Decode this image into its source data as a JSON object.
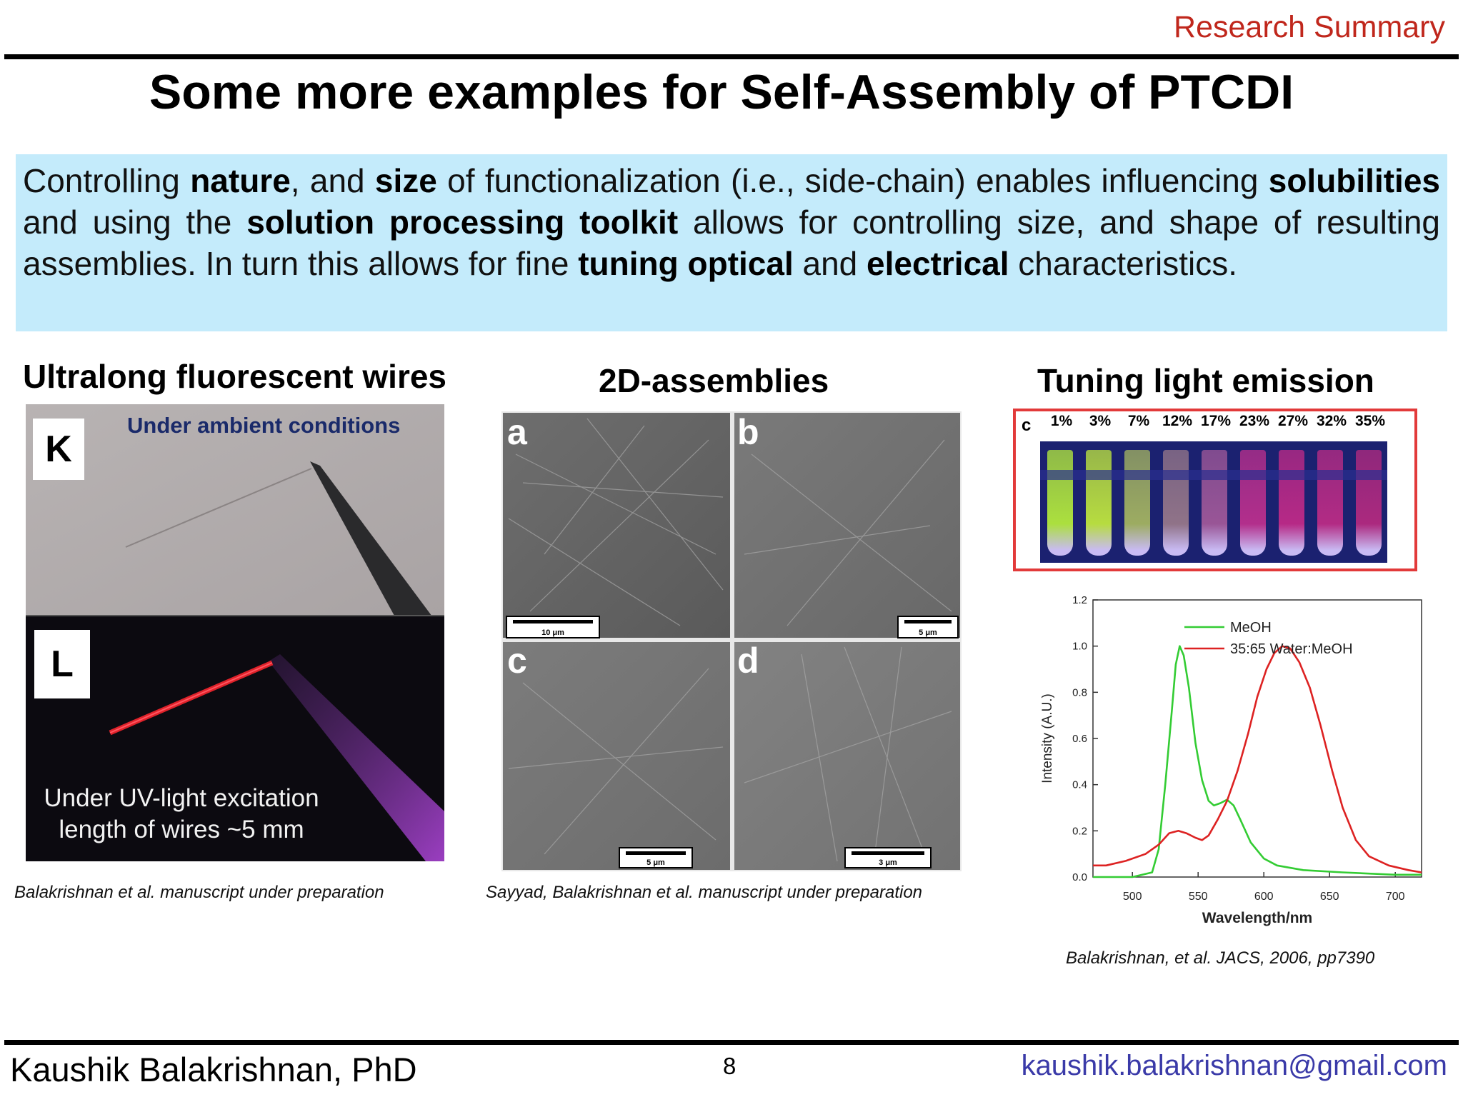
{
  "header": {
    "label": "Research Summary"
  },
  "title": "Some more examples for Self-Assembly of PTCDI",
  "summary": {
    "t1": "Controlling ",
    "b1": "nature",
    "t2": ", and ",
    "b2": "size",
    "t3": " of functionalization (i.e., side-chain) enables influencing ",
    "b3": "solubilities",
    "t4": " and using the ",
    "b4": "solution processing toolkit",
    "t5": " allows for controlling size, and shape of resulting assemblies. In turn this allows for fine ",
    "b5": "tuning optical",
    "t6": " and ",
    "b6": "electrical",
    "t7": " characteristics."
  },
  "panels": {
    "wires": {
      "heading": "Ultralong fluorescent wires",
      "label_k": "K",
      "label_l": "L",
      "ambient_caption": "Under ambient conditions",
      "uv_caption_line1": "Under UV-light excitation",
      "uv_caption_line2": "length of wires ~5 mm",
      "citation": "Balakrishnan et al. manuscript under preparation"
    },
    "assemblies": {
      "heading": "2D-assemblies",
      "letters": [
        "a",
        "b",
        "c",
        "d"
      ],
      "scalebars": [
        "10 μm",
        "5 μm",
        "5 μm",
        "3 μm"
      ],
      "citation": "Sayyad, Balakrishnan et al. manuscript under preparation"
    },
    "emission": {
      "heading": "Tuning light emission",
      "vial_panel_label": "c",
      "vial_percentages": [
        "1%",
        "3%",
        "7%",
        "12%",
        "17%",
        "23%",
        "27%",
        "32%",
        "35%"
      ],
      "vial_colors": [
        "#b8f03a",
        "#c4ec3c",
        "#a8b860",
        "#9a7a8a",
        "#a45a9a",
        "#c0308e",
        "#c42a88",
        "#c02c86",
        "#b82a80"
      ],
      "citation": "Balakrishnan, et al. JACS, 2006, pp7390"
    }
  },
  "chart_data": {
    "type": "line",
    "xlabel": "Wavelength/nm",
    "ylabel": "Intensity (A.U.)",
    "xlim": [
      470,
      720
    ],
    "ylim": [
      0,
      1.2
    ],
    "xticks": [
      500,
      550,
      600,
      650,
      700
    ],
    "yticks": [
      "0.0",
      "0.2",
      "0.4",
      "0.6",
      "0.8",
      "1.0",
      "1.2"
    ],
    "legend_position": "top-right",
    "series": [
      {
        "name": "MeOH",
        "color": "#33cc33",
        "points": [
          [
            470,
            0.0
          ],
          [
            500,
            0.0
          ],
          [
            515,
            0.02
          ],
          [
            520,
            0.12
          ],
          [
            525,
            0.4
          ],
          [
            530,
            0.72
          ],
          [
            533,
            0.92
          ],
          [
            536,
            1.0
          ],
          [
            539,
            0.96
          ],
          [
            543,
            0.82
          ],
          [
            548,
            0.58
          ],
          [
            553,
            0.42
          ],
          [
            558,
            0.33
          ],
          [
            562,
            0.31
          ],
          [
            567,
            0.32
          ],
          [
            572,
            0.335
          ],
          [
            577,
            0.31
          ],
          [
            582,
            0.25
          ],
          [
            590,
            0.15
          ],
          [
            600,
            0.08
          ],
          [
            610,
            0.05
          ],
          [
            630,
            0.03
          ],
          [
            660,
            0.02
          ],
          [
            700,
            0.01
          ],
          [
            720,
            0.01
          ]
        ]
      },
      {
        "name": "35:65 Water:MeOH",
        "color": "#dd2222",
        "points": [
          [
            470,
            0.05
          ],
          [
            480,
            0.05
          ],
          [
            495,
            0.07
          ],
          [
            510,
            0.1
          ],
          [
            520,
            0.14
          ],
          [
            528,
            0.19
          ],
          [
            535,
            0.2
          ],
          [
            541,
            0.19
          ],
          [
            548,
            0.17
          ],
          [
            553,
            0.16
          ],
          [
            558,
            0.18
          ],
          [
            565,
            0.25
          ],
          [
            572,
            0.33
          ],
          [
            580,
            0.46
          ],
          [
            588,
            0.62
          ],
          [
            595,
            0.78
          ],
          [
            602,
            0.9
          ],
          [
            608,
            0.97
          ],
          [
            614,
            1.0
          ],
          [
            620,
            0.99
          ],
          [
            627,
            0.93
          ],
          [
            635,
            0.82
          ],
          [
            643,
            0.66
          ],
          [
            652,
            0.46
          ],
          [
            660,
            0.3
          ],
          [
            670,
            0.16
          ],
          [
            680,
            0.09
          ],
          [
            695,
            0.05
          ],
          [
            710,
            0.03
          ],
          [
            720,
            0.02
          ]
        ]
      }
    ]
  },
  "footer": {
    "name": "Kaushik Balakrishnan, PhD",
    "page_number": "8",
    "email": "kaushik.balakrishnan@gmail.com"
  }
}
